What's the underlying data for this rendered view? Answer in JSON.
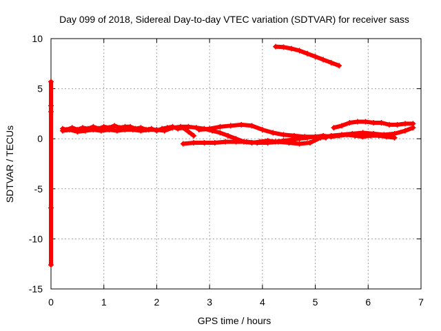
{
  "chart_data": {
    "type": "scatter",
    "title": "Day 099 of 2018, Sidereal Day-to-day VTEC variation (SDTVAR) for receiver sass",
    "xlabel": "GPS time / hours",
    "ylabel": "SDTVAR / TECUs",
    "xlim": [
      0,
      7
    ],
    "ylim": [
      -15,
      10
    ],
    "xticks": [
      0,
      1,
      2,
      3,
      4,
      5,
      6,
      7
    ],
    "yticks": [
      -15,
      -10,
      -5,
      0,
      5,
      10
    ],
    "grid": true,
    "color": "#ff0000",
    "series": [
      {
        "x": [
          0.22,
          0.3,
          0.4,
          0.5,
          0.6,
          0.7,
          0.8,
          0.9,
          1.0,
          1.1,
          1.2,
          1.3,
          1.4,
          1.5,
          1.6,
          1.7,
          1.8,
          1.9,
          2.0,
          2.1,
          2.2,
          2.3,
          2.4,
          2.5,
          2.6,
          2.7
        ],
        "y": [
          1.0,
          0.9,
          1.1,
          0.9,
          1.1,
          1.0,
          1.2,
          1.0,
          1.2,
          1.1,
          1.3,
          1.1,
          1.2,
          1.2,
          1.0,
          1.1,
          0.9,
          1.0,
          0.8,
          1.0,
          1.1,
          1.2,
          1.0,
          1.1,
          0.7,
          0.3
        ]
      },
      {
        "x": [
          0.22,
          0.35,
          0.5,
          0.65,
          0.8,
          0.95,
          1.1,
          1.25,
          1.4,
          1.55,
          1.7,
          1.85,
          2.0,
          2.15,
          2.3,
          2.45,
          2.6,
          2.75,
          2.9,
          3.05,
          3.2,
          3.35,
          3.5,
          3.65,
          3.8,
          3.95,
          4.1,
          4.25,
          4.4,
          4.55,
          4.7,
          4.85,
          5.0,
          5.15,
          5.3,
          5.45,
          5.6,
          5.75,
          5.9,
          6.05,
          6.2,
          6.35,
          6.5
        ],
        "y": [
          0.8,
          0.9,
          0.7,
          0.8,
          0.9,
          0.8,
          0.9,
          0.8,
          0.9,
          0.9,
          0.8,
          0.9,
          0.9,
          0.8,
          1.1,
          1.2,
          1.2,
          1.1,
          1.0,
          0.8,
          0.6,
          0.3,
          0.0,
          -0.3,
          -0.4,
          -0.3,
          -0.2,
          -0.3,
          -0.2,
          -0.1,
          0.0,
          0.1,
          0.2,
          0.3,
          0.2,
          0.3,
          0.4,
          0.3,
          0.2,
          0.3,
          0.3,
          0.2,
          0.1
        ]
      },
      {
        "x": [
          2.5,
          2.7,
          2.9,
          3.1,
          3.3,
          3.5,
          3.7,
          3.9,
          4.1,
          4.3,
          4.5,
          4.7,
          4.9,
          5.1,
          5.3,
          5.5,
          5.7,
          5.9,
          6.1,
          6.3,
          6.5,
          6.7,
          6.85
        ],
        "y": [
          -0.5,
          -0.4,
          -0.4,
          -0.4,
          -0.3,
          -0.3,
          -0.3,
          -0.4,
          -0.4,
          -0.3,
          -0.4,
          -0.5,
          -0.4,
          0.1,
          0.3,
          0.4,
          0.5,
          0.6,
          0.5,
          0.4,
          0.5,
          0.8,
          1.1
        ]
      },
      {
        "x": [
          2.8,
          3.0,
          3.2,
          3.4,
          3.6,
          3.8,
          4.0,
          4.2,
          4.4,
          4.6,
          4.8,
          5.0,
          5.2
        ],
        "y": [
          0.9,
          1.0,
          1.2,
          1.3,
          1.4,
          1.3,
          0.9,
          0.6,
          0.4,
          0.3,
          0.2,
          0.2,
          0.1
        ]
      },
      {
        "x": [
          5.35,
          5.5,
          5.65,
          5.8,
          5.95,
          6.1,
          6.25,
          6.4,
          6.55,
          6.7,
          6.85
        ],
        "y": [
          1.1,
          1.3,
          1.6,
          1.7,
          1.7,
          1.6,
          1.6,
          1.4,
          1.4,
          1.5,
          1.5
        ]
      },
      {
        "x": [
          4.25,
          4.4,
          4.55,
          4.7,
          4.85,
          5.0,
          5.15,
          5.3,
          5.45
        ],
        "y": [
          9.2,
          9.15,
          9.0,
          8.8,
          8.5,
          8.2,
          7.9,
          7.6,
          7.3
        ]
      },
      {
        "x": [
          0.0,
          0.0,
          0.0,
          0.0,
          0.0
        ],
        "y": [
          5.7,
          3.3,
          2.7,
          -6.9,
          -12.6
        ]
      }
    ]
  }
}
